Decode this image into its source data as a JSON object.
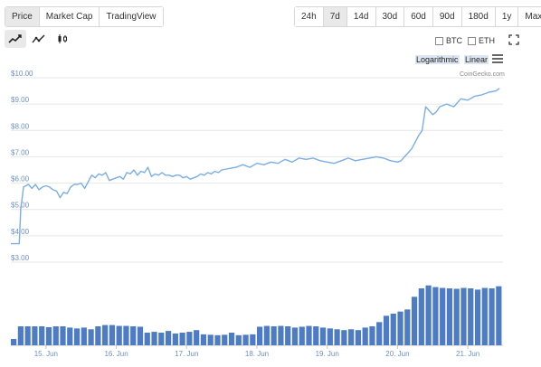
{
  "tabs": {
    "items": [
      "Price",
      "Market Cap",
      "TradingView"
    ],
    "active": 0
  },
  "ranges": {
    "items": [
      "24h",
      "7d",
      "14d",
      "30d",
      "60d",
      "90d",
      "180d",
      "1y",
      "Max"
    ],
    "active": 1
  },
  "chart_types": {
    "items": [
      "line-chart-icon",
      "ohlc-line-icon",
      "candlestick-icon"
    ],
    "active": 0
  },
  "compare": {
    "btc": "BTC",
    "eth": "ETH"
  },
  "scale": {
    "log": "Logarithmic",
    "linear": "Linear"
  },
  "credit": "CoinGecko.com",
  "colors": {
    "line": "#7aaee6",
    "volume": "#4d7cc4",
    "grid": "#e6e6e6",
    "axis_text": "#6e8fc4"
  },
  "chart_data": {
    "type": "line",
    "title": "",
    "xlabel": "",
    "ylabel": "",
    "ylim": [
      3,
      10
    ],
    "yticks": [
      "$3.00",
      "$4.00",
      "$5.00",
      "$6.00",
      "$7.00",
      "$8.00",
      "$9.00",
      "$10.00"
    ],
    "ytick_values": [
      3,
      4,
      5,
      6,
      7,
      8,
      9,
      10
    ],
    "xlim": [
      0,
      7
    ],
    "xticks": [
      "15. Jun",
      "16. Jun",
      "17. Jun",
      "18. Jun",
      "19. Jun",
      "20. Jun",
      "21. Jun"
    ],
    "xtick_values": [
      0.5,
      1.5,
      2.5,
      3.5,
      4.5,
      5.5,
      6.5
    ],
    "grid": true,
    "series": [
      {
        "x": [
          0,
          0.12,
          0.14,
          0.18,
          0.25,
          0.3,
          0.35,
          0.4,
          0.45,
          0.5,
          0.55,
          0.6,
          0.65,
          0.7,
          0.75,
          0.8,
          0.85,
          0.9,
          0.95,
          1.0,
          1.05,
          1.1,
          1.15,
          1.2,
          1.25,
          1.3,
          1.35,
          1.4,
          1.45,
          1.5,
          1.55,
          1.6,
          1.65,
          1.7,
          1.75,
          1.8,
          1.85,
          1.9,
          1.95,
          2.0,
          2.05,
          2.1,
          2.15,
          2.2,
          2.25,
          2.3,
          2.35,
          2.4,
          2.45,
          2.5,
          2.55,
          2.6,
          2.65,
          2.7,
          2.75,
          2.8,
          2.85,
          2.9,
          2.95,
          3.0,
          3.1,
          3.2,
          3.3,
          3.4,
          3.5,
          3.6,
          3.7,
          3.8,
          3.9,
          4.0,
          4.1,
          4.2,
          4.3,
          4.4,
          4.5,
          4.6,
          4.7,
          4.8,
          4.9,
          5.0,
          5.1,
          5.2,
          5.3,
          5.4,
          5.5,
          5.55,
          5.6,
          5.7,
          5.8,
          5.85,
          5.9,
          6.0,
          6.05,
          6.1,
          6.2,
          6.3,
          6.4,
          6.5,
          6.6,
          6.7,
          6.8,
          6.9,
          6.95
        ],
        "y": [
          3.7,
          3.7,
          5.0,
          5.85,
          5.95,
          5.8,
          5.95,
          5.75,
          5.85,
          5.9,
          5.85,
          5.75,
          5.7,
          5.45,
          5.65,
          5.6,
          5.85,
          5.95,
          5.95,
          6.0,
          5.8,
          6.05,
          6.3,
          6.2,
          6.35,
          6.3,
          6.4,
          6.1,
          6.15,
          6.2,
          6.25,
          6.15,
          6.4,
          6.35,
          6.5,
          6.3,
          6.45,
          6.4,
          6.6,
          6.25,
          6.35,
          6.3,
          6.4,
          6.3,
          6.3,
          6.25,
          6.3,
          6.3,
          6.2,
          6.25,
          6.15,
          6.2,
          6.25,
          6.35,
          6.3,
          6.4,
          6.35,
          6.45,
          6.4,
          6.5,
          6.55,
          6.6,
          6.7,
          6.6,
          6.75,
          6.7,
          6.8,
          6.75,
          6.9,
          6.8,
          6.95,
          6.9,
          6.95,
          6.85,
          6.8,
          6.75,
          6.85,
          6.95,
          6.85,
          6.9,
          6.95,
          7.0,
          6.95,
          6.85,
          6.8,
          6.85,
          7.0,
          7.3,
          7.8,
          8.0,
          8.9,
          8.6,
          8.7,
          8.9,
          9.0,
          8.9,
          9.2,
          9.15,
          9.3,
          9.35,
          9.45,
          9.5,
          9.6
        ]
      }
    ],
    "volume": {
      "x": [
        0.0,
        0.1,
        0.2,
        0.3,
        0.4,
        0.5,
        0.6,
        0.7,
        0.8,
        0.9,
        1.0,
        1.1,
        1.2,
        1.3,
        1.4,
        1.5,
        1.6,
        1.7,
        1.8,
        1.9,
        2.0,
        2.1,
        2.2,
        2.3,
        2.4,
        2.5,
        2.6,
        2.7,
        2.8,
        2.9,
        3.0,
        3.1,
        3.2,
        3.3,
        3.4,
        3.5,
        3.6,
        3.7,
        3.8,
        3.9,
        4.0,
        4.1,
        4.2,
        4.3,
        4.4,
        4.5,
        4.6,
        4.7,
        4.8,
        4.9,
        5.0,
        5.1,
        5.2,
        5.3,
        5.4,
        5.5,
        5.6,
        5.7,
        5.8,
        5.9,
        6.0,
        6.1,
        6.2,
        6.3,
        6.4,
        6.5,
        6.6,
        6.7,
        6.8,
        6.9
      ],
      "values": [
        0.15,
        0.45,
        0.45,
        0.45,
        0.45,
        0.43,
        0.45,
        0.45,
        0.42,
        0.4,
        0.42,
        0.38,
        0.45,
        0.48,
        0.48,
        0.46,
        0.46,
        0.45,
        0.44,
        0.3,
        0.32,
        0.3,
        0.34,
        0.28,
        0.3,
        0.32,
        0.36,
        0.26,
        0.25,
        0.24,
        0.25,
        0.3,
        0.24,
        0.25,
        0.26,
        0.44,
        0.46,
        0.45,
        0.46,
        0.45,
        0.42,
        0.44,
        0.46,
        0.45,
        0.42,
        0.4,
        0.38,
        0.36,
        0.38,
        0.36,
        0.42,
        0.45,
        0.55,
        0.7,
        0.75,
        0.8,
        0.85,
        1.15,
        1.35,
        1.42,
        1.38,
        1.36,
        1.35,
        1.34,
        1.36,
        1.35,
        1.32,
        1.36,
        1.35,
        1.4
      ]
    }
  }
}
